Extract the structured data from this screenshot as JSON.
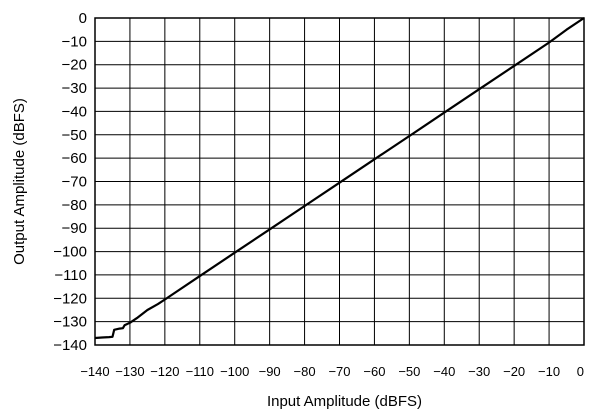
{
  "chart_data": {
    "type": "line",
    "title": "",
    "xlabel": "Input Amplitude (dBFS)",
    "ylabel": "Output Amplitude (dBFS)",
    "xlim": [
      -140,
      0
    ],
    "ylim": [
      -140,
      0
    ],
    "grid": true,
    "x_ticks": [
      -140,
      -130,
      -120,
      -110,
      -100,
      -90,
      -80,
      -70,
      -60,
      -50,
      -40,
      -30,
      -20,
      -10,
      0
    ],
    "x_tick_labels": [
      "−140",
      "−130",
      "−120",
      "−110",
      "−100",
      "−90",
      "−80",
      "−70",
      "−60",
      "−50",
      "−40",
      "−30",
      "−20",
      "−10",
      "0"
    ],
    "y_ticks": [
      0,
      -10,
      -20,
      -30,
      -40,
      -50,
      -60,
      -70,
      -80,
      -90,
      -100,
      -110,
      -120,
      -130,
      -140
    ],
    "y_tick_labels": [
      "0",
      "−10",
      "−20",
      "−30",
      "−40",
      "−50",
      "−60",
      "−70",
      "−80",
      "−90",
      "−100",
      "−110",
      "−120",
      "−130",
      "−140"
    ],
    "series": [
      {
        "x": [
          -140,
          -138,
          -136,
          -135,
          -134.5,
          -133,
          -132,
          -131.5,
          -130,
          -128,
          -125,
          -122,
          -120,
          -110,
          -100,
          -90,
          -80,
          -70,
          -60,
          -50,
          -40,
          -30,
          -20,
          -10,
          -5,
          0
        ],
        "y": [
          -137,
          -136.8,
          -136.6,
          -136.5,
          -133.5,
          -133,
          -132.8,
          -131.5,
          -130.5,
          -128.5,
          -125,
          -122.5,
          -120.5,
          -110.5,
          -100.5,
          -90.5,
          -80.5,
          -70.5,
          -60.5,
          -50.5,
          -40.5,
          -30.5,
          -20.5,
          -10.5,
          -5,
          0
        ]
      }
    ]
  }
}
